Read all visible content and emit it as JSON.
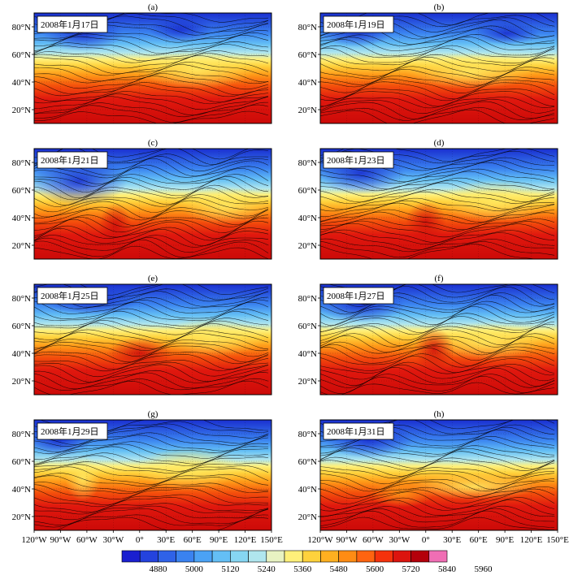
{
  "chart_data": {
    "type": "heatmap",
    "panels": [
      {
        "label": "(a)",
        "date": "2008年1月17日"
      },
      {
        "label": "(b)",
        "date": "2008年1月19日"
      },
      {
        "label": "(c)",
        "date": "2008年1月21日"
      },
      {
        "label": "(d)",
        "date": "2008年1月23日"
      },
      {
        "label": "(e)",
        "date": "2008年1月25日"
      },
      {
        "label": "(f)",
        "date": "2008年1月27日"
      },
      {
        "label": "(g)",
        "date": "2008年1月29日"
      },
      {
        "label": "(h)",
        "date": "2008年1月31日"
      }
    ],
    "y_ticks": [
      "80°N",
      "60°N",
      "40°N",
      "20°N"
    ],
    "x_ticks": [
      "120°W",
      "90°W",
      "60°W",
      "30°W",
      "0°",
      "30°E",
      "60°E",
      "90°E",
      "120°E",
      "150°E"
    ],
    "x_range_deg": [
      -120,
      150
    ],
    "y_range_deg": [
      10,
      90
    ],
    "colorbar": {
      "tick_labels": [
        "4880",
        "5000",
        "5120",
        "5240",
        "5360",
        "5480",
        "5600",
        "5720",
        "5840",
        "5960"
      ],
      "colors": [
        "#1a1fd0",
        "#2443de",
        "#2f62e8",
        "#3a82f0",
        "#4ba2f5",
        "#64bff5",
        "#86d6f2",
        "#b0e6ee",
        "#e8f2c2",
        "#fff07a",
        "#ffd23c",
        "#ffb020",
        "#ff8c14",
        "#ff6410",
        "#f5320c",
        "#dc140e",
        "#b4000a",
        "#f06eb4"
      ]
    },
    "grid": true
  }
}
